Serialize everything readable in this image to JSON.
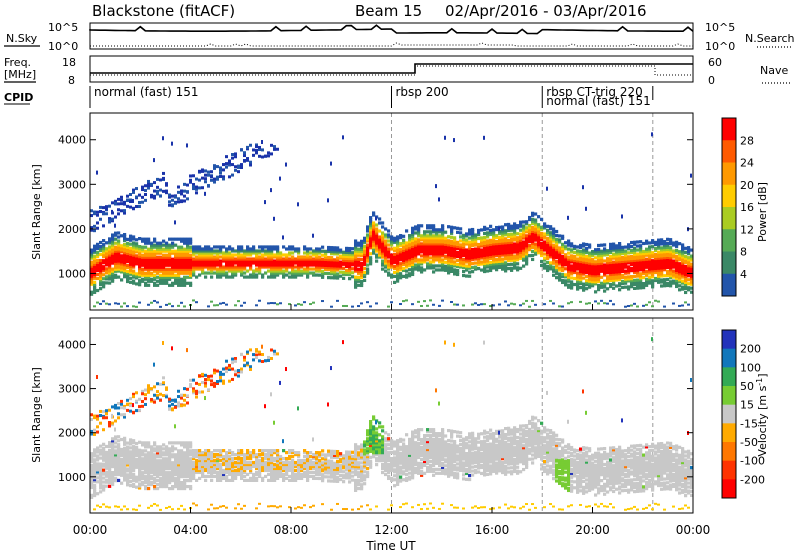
{
  "header": {
    "station": "Blackstone (fitACF)",
    "beam": "Beam 15",
    "dates": "02/Apr/2016 - 03/Apr/2016"
  },
  "noise_panel": {
    "left_label": "N.Sky",
    "right_label": "N.Search",
    "tick_top": "10^5",
    "tick_bottom": "10^0"
  },
  "freq_panel": {
    "left_label_1": "Freq.",
    "left_label_2": "[MHz]",
    "left_ticks": [
      "18",
      "8"
    ],
    "right_label": "Nave",
    "right_ticks": [
      "60",
      "0"
    ]
  },
  "cpid": {
    "label": "CPID",
    "modes": [
      {
        "text": "normal (fast) 151",
        "start_hour": 0.0,
        "row": 0
      },
      {
        "text": "rbsp 200",
        "start_hour": 12.0,
        "row": 0
      },
      {
        "text": "rbsp CT-trig 220",
        "start_hour": 18.0,
        "row": 0
      },
      {
        "text": "normal (fast) 151",
        "start_hour": 18.0,
        "row": 1
      }
    ],
    "dashed_hours": [
      12.0,
      18.0,
      22.4
    ]
  },
  "x_axis": {
    "label": "Time UT",
    "ticks": [
      "00:00",
      "04:00",
      "08:00",
      "12:00",
      "16:00",
      "20:00",
      "00:00"
    ]
  },
  "power_panel": {
    "ylabel": "Slant Range [km]",
    "yticks": [
      "4000",
      "3000",
      "2000",
      "1000"
    ],
    "colorbar_label": "Power [dB]",
    "colorbar_ticks": [
      "28",
      "24",
      "20",
      "16",
      "12",
      "8",
      "4"
    ]
  },
  "velocity_panel": {
    "ylabel": "Slant Range [km]",
    "yticks": [
      "4000",
      "3000",
      "2000",
      "1000"
    ],
    "colorbar_label": "Velocity [m s",
    "colorbar_sup": "-1",
    "colorbar_ticks": [
      "200",
      "100",
      "50",
      "15",
      "-15",
      "-50",
      "-100",
      "-200"
    ]
  },
  "colors": {
    "power": [
      "#ff0000",
      "#ff5a00",
      "#ff9900",
      "#ffcc00",
      "#aacc22",
      "#55aa55",
      "#3a8866",
      "#2255aa",
      "#1a33aa",
      "#0000ff"
    ],
    "velocity": [
      "#2233bb",
      "#1177bb",
      "#33aa55",
      "#77cc33",
      "#c8c8c8",
      "#ffaa00",
      "#ff7700",
      "#ff3300",
      "#ff0000"
    ]
  },
  "chart_data": {
    "type": "heatmap",
    "x_range_hours": [
      0,
      24
    ],
    "y_range_km": [
      180,
      4600
    ],
    "series": [
      {
        "name": "Power [dB]",
        "echo_band": {
          "hours": [
            0,
            1,
            2,
            3,
            6,
            9,
            10.8,
            11.2,
            12,
            13,
            14,
            15,
            16,
            17,
            17.6,
            18,
            19,
            20,
            21,
            22,
            23,
            23.8
          ],
          "center_km": [
            1050,
            1400,
            1250,
            1250,
            1250,
            1250,
            1200,
            1900,
            1300,
            1550,
            1550,
            1450,
            1550,
            1600,
            1850,
            1650,
            1200,
            1100,
            1150,
            1200,
            1250,
            1050
          ],
          "peak_db": 28
        }
      },
      {
        "name": "Velocity",
        "dominant": "-15 to 15 (grey)",
        "notable": [
          "orange -50 patches 04:00-11:00 near 1200-1600 km",
          "green +50 at 11:00-12:00 near 1800-2000 km"
        ]
      }
    ]
  }
}
